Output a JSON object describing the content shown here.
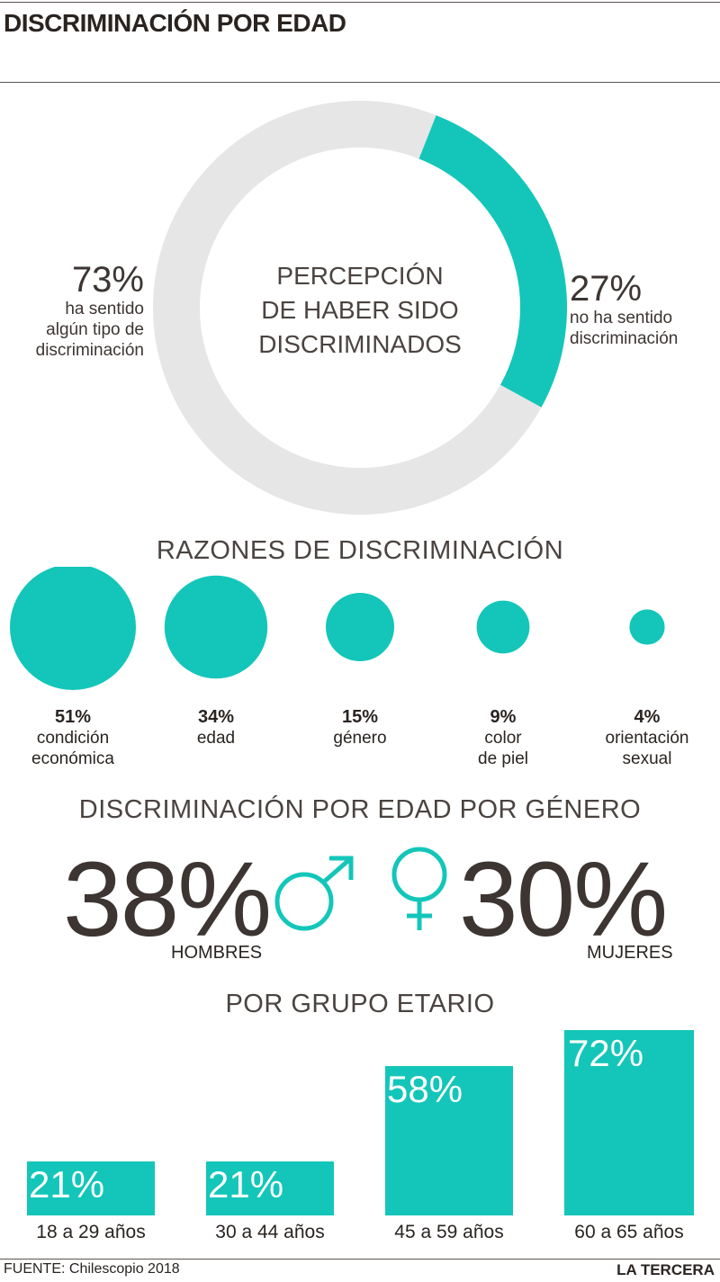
{
  "header": {
    "title": "DISCRIMINACIÓN POR EDAD"
  },
  "colors": {
    "accent": "#13c6b9",
    "track": "#e6e6e6",
    "text": "#2a2421"
  },
  "chart_data": [
    {
      "type": "pie",
      "center_label": [
        "PERCEPCIÓN",
        "DE HABER SIDO",
        "DISCRIMINADOS"
      ],
      "slices": [
        {
          "label_pct": "73%",
          "label_text": [
            "ha sentido",
            "algún tipo de",
            "discriminación"
          ],
          "value": 73
        },
        {
          "label_pct": "27%",
          "label_text": [
            "no ha sentido",
            "discriminación"
          ],
          "value": 27
        }
      ]
    },
    {
      "type": "bubble",
      "title": "RAZONES DE DISCRIMINACIÓN",
      "items": [
        {
          "pct": "51%",
          "value": 51,
          "label": [
            "condición",
            "económica"
          ]
        },
        {
          "pct": "34%",
          "value": 34,
          "label": [
            "edad"
          ]
        },
        {
          "pct": "15%",
          "value": 15,
          "label": [
            "género"
          ]
        },
        {
          "pct": "9%",
          "value": 9,
          "label": [
            "color",
            "de piel"
          ]
        },
        {
          "pct": "4%",
          "value": 4,
          "label": [
            "orientación",
            "sexual"
          ]
        }
      ]
    },
    {
      "type": "table",
      "title": "DISCRIMINACIÓN POR EDAD POR GÉNERO",
      "rows": [
        {
          "pct": "38%",
          "value": 38,
          "label": "HOMBRES",
          "icon": "male-icon"
        },
        {
          "pct": "30%",
          "value": 30,
          "label": "MUJERES",
          "icon": "female-icon"
        }
      ]
    },
    {
      "type": "bar",
      "title": "POR GRUPO ETARIO",
      "categories": [
        "18 a 29 años",
        "30 a 44 años",
        "45 a 59 años",
        "60 a 65 años"
      ],
      "values": [
        21,
        21,
        58,
        72
      ],
      "value_labels": [
        "21%",
        "21%",
        "58%",
        "72%"
      ]
    }
  ],
  "footer": {
    "source": "FUENTE: Chilescopio 2018",
    "brand": "LA TERCERA"
  }
}
